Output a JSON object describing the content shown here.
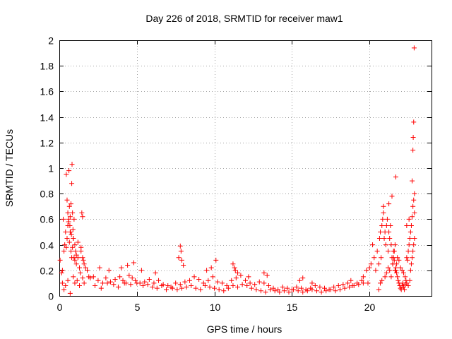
{
  "chart_data": {
    "type": "scatter",
    "title": "Day 226 of 2018, SRMTID for receiver maw1",
    "xlabel": "GPS time / hours",
    "ylabel": "SRMTID / TECUs",
    "xlim": [
      0,
      24
    ],
    "ylim": [
      0,
      2
    ],
    "xticks": [
      0,
      5,
      10,
      15,
      20
    ],
    "yticks": [
      0,
      0.2,
      0.4,
      0.6,
      0.8,
      1,
      1.2,
      1.4,
      1.6,
      1.8,
      2
    ],
    "ytick_labels": [
      "0",
      "0.2",
      "0.4",
      "0.6",
      "0.8",
      "1",
      "1.2",
      "1.4",
      "1.6",
      "1.8",
      "2"
    ],
    "grid": true,
    "marker": "+",
    "color": "#ff0000",
    "series": [
      {
        "name": "SRMTID",
        "x": [
          0.05,
          0.15,
          0.2,
          0.3,
          0.35,
          0.4,
          0.45,
          0.5,
          0.55,
          0.6,
          0.65,
          0.7,
          0.75,
          0.8,
          0.85,
          0.9,
          0.95,
          1.0,
          1.1,
          1.2,
          1.3,
          1.4,
          1.5,
          1.6,
          1.7,
          1.8,
          1.9,
          2.0,
          0.25,
          0.45,
          0.5,
          0.55,
          0.6,
          0.62,
          0.65,
          0.68,
          0.7,
          0.72,
          0.75,
          0.78,
          0.8,
          0.82,
          0.85,
          0.88,
          0.9,
          0.95,
          1.0,
          1.05,
          1.1,
          1.2,
          1.4,
          1.45,
          1.5,
          1.55,
          0.2,
          0.3,
          0.4,
          0.55,
          0.7,
          0.9,
          1.0,
          1.15,
          1.3,
          1.35,
          1.5,
          1.6,
          2.2,
          2.5,
          2.8,
          3.0,
          3.3,
          3.6,
          3.9,
          4.1,
          4.3,
          4.5,
          4.7,
          4.9,
          5.2,
          5.5,
          5.8,
          6.1,
          6.4,
          6.7,
          7.0,
          7.2,
          7.5,
          7.8,
          8.1,
          8.4,
          8.7,
          9.0,
          9.3,
          9.6,
          9.9,
          10.2,
          10.5,
          10.8,
          11.1,
          11.4,
          11.7,
          12.0,
          12.3,
          12.6,
          12.9,
          13.2,
          13.5,
          13.8,
          14.1,
          14.4,
          14.7,
          15.0,
          15.3,
          15.6,
          15.9,
          16.2,
          16.5,
          16.8,
          17.1,
          17.4,
          17.7,
          18.0,
          18.3,
          18.6,
          18.9,
          19.2,
          19.5,
          2.3,
          2.7,
          3.1,
          3.5,
          3.8,
          4.2,
          4.6,
          5.0,
          5.4,
          5.7,
          6.0,
          6.3,
          6.6,
          6.9,
          7.3,
          7.6,
          7.9,
          8.2,
          8.5,
          8.8,
          9.1,
          9.4,
          9.7,
          10.0,
          10.3,
          10.6,
          10.9,
          11.2,
          11.5,
          11.8,
          12.1,
          12.4,
          12.7,
          13.0,
          13.3,
          13.6,
          13.9,
          14.2,
          14.5,
          14.8,
          15.1,
          15.4,
          15.7,
          16.0,
          16.3,
          16.6,
          16.9,
          17.2,
          17.5,
          17.8,
          18.1,
          18.4,
          18.7,
          19.0,
          19.3,
          19.6,
          2.6,
          3.2,
          4.0,
          4.4,
          4.8,
          5.3,
          6.2,
          7.7,
          7.8,
          7.85,
          7.9,
          8.0,
          9.5,
          9.8,
          10.1,
          11.2,
          11.3,
          11.35,
          11.5,
          12.2,
          13.2,
          13.4,
          15.5,
          15.7,
          16.3,
          18.8,
          19.6,
          19.8,
          19.9,
          20.0,
          20.1,
          20.2,
          20.3,
          20.4,
          20.5,
          20.6,
          20.65,
          20.7,
          20.75,
          20.8,
          20.85,
          20.9,
          20.95,
          21.0,
          21.05,
          21.1,
          21.15,
          21.2,
          21.25,
          21.3,
          21.35,
          21.4,
          21.45,
          21.5,
          21.55,
          21.6,
          21.65,
          21.7,
          21.75,
          21.8,
          21.85,
          21.9,
          21.95,
          22.0,
          22.05,
          22.1,
          22.15,
          22.2,
          22.25,
          22.3,
          22.35,
          22.4,
          22.45,
          22.5,
          22.55,
          22.6,
          22.65,
          22.7,
          22.75,
          22.8,
          22.85,
          22.9,
          20.6,
          20.7,
          20.8,
          21.0,
          21.1,
          21.2,
          21.3,
          21.4,
          21.5,
          21.55,
          21.6,
          21.65,
          21.7,
          21.75,
          21.8,
          21.9,
          22.0,
          22.1,
          22.2,
          22.3,
          22.4,
          22.5,
          22.6,
          22.65,
          22.7,
          22.75,
          22.8,
          22.85,
          22.9,
          20.9,
          21.25,
          21.45,
          21.7,
          22.4,
          22.55,
          22.75,
          22.8,
          22.82,
          22.85,
          22.88,
          22.9
        ],
        "y": [
          0.28,
          0.18,
          0.2,
          0.35,
          0.4,
          0.5,
          0.38,
          0.45,
          0.55,
          0.6,
          0.42,
          0.5,
          0.35,
          0.3,
          0.38,
          0.45,
          0.3,
          0.28,
          0.25,
          0.3,
          0.22,
          0.35,
          0.3,
          0.25,
          0.22,
          0.2,
          0.15,
          0.14,
          0.6,
          0.95,
          0.75,
          0.65,
          0.58,
          0.98,
          0.7,
          0.55,
          0.62,
          0.5,
          0.72,
          0.48,
          0.88,
          1.03,
          0.65,
          0.52,
          0.45,
          0.6,
          0.4,
          0.35,
          0.32,
          0.42,
          0.38,
          0.65,
          0.62,
          0.28,
          0.1,
          0.05,
          0.08,
          0.12,
          0.02,
          0.15,
          0.1,
          0.12,
          0.08,
          0.18,
          0.14,
          0.1,
          0.15,
          0.12,
          0.1,
          0.14,
          0.11,
          0.13,
          0.15,
          0.12,
          0.1,
          0.16,
          0.14,
          0.12,
          0.1,
          0.11,
          0.13,
          0.1,
          0.12,
          0.09,
          0.08,
          0.07,
          0.1,
          0.09,
          0.11,
          0.12,
          0.15,
          0.13,
          0.1,
          0.12,
          0.15,
          0.11,
          0.1,
          0.08,
          0.12,
          0.14,
          0.16,
          0.12,
          0.1,
          0.09,
          0.11,
          0.1,
          0.08,
          0.06,
          0.05,
          0.07,
          0.06,
          0.05,
          0.07,
          0.06,
          0.05,
          0.06,
          0.08,
          0.07,
          0.06,
          0.05,
          0.07,
          0.08,
          0.09,
          0.1,
          0.08,
          0.1,
          0.12,
          0.08,
          0.06,
          0.1,
          0.09,
          0.07,
          0.1,
          0.09,
          0.1,
          0.08,
          0.09,
          0.07,
          0.06,
          0.08,
          0.05,
          0.06,
          0.05,
          0.06,
          0.07,
          0.08,
          0.06,
          0.05,
          0.08,
          0.07,
          0.06,
          0.05,
          0.04,
          0.06,
          0.08,
          0.07,
          0.09,
          0.08,
          0.06,
          0.05,
          0.04,
          0.03,
          0.05,
          0.04,
          0.03,
          0.04,
          0.03,
          0.05,
          0.04,
          0.03,
          0.04,
          0.05,
          0.04,
          0.03,
          0.04,
          0.05,
          0.04,
          0.05,
          0.06,
          0.07,
          0.08,
          0.09,
          0.1,
          0.22,
          0.2,
          0.22,
          0.24,
          0.26,
          0.2,
          0.18,
          0.3,
          0.39,
          0.35,
          0.28,
          0.24,
          0.2,
          0.22,
          0.28,
          0.25,
          0.22,
          0.2,
          0.18,
          0.15,
          0.18,
          0.16,
          0.12,
          0.14,
          0.1,
          0.12,
          0.15,
          0.2,
          0.1,
          0.22,
          0.25,
          0.4,
          0.3,
          0.2,
          0.35,
          0.25,
          0.45,
          0.5,
          0.3,
          0.55,
          0.6,
          0.7,
          0.45,
          0.5,
          0.4,
          0.55,
          0.6,
          0.35,
          0.5,
          0.45,
          0.55,
          0.4,
          0.3,
          0.25,
          0.35,
          0.28,
          0.2,
          0.22,
          0.18,
          0.15,
          0.12,
          0.1,
          0.08,
          0.06,
          0.05,
          0.08,
          0.1,
          0.07,
          0.05,
          0.09,
          0.12,
          0.3,
          0.28,
          0.35,
          0.4,
          0.45,
          0.5,
          0.55,
          0.62,
          0.7,
          0.75,
          0.8,
          0.05,
          0.1,
          0.12,
          0.15,
          0.18,
          0.22,
          0.2,
          0.15,
          0.25,
          0.3,
          0.35,
          0.4,
          0.2,
          0.25,
          0.3,
          0.28,
          0.22,
          0.2,
          0.18,
          0.15,
          0.1,
          0.08,
          0.12,
          0.2,
          0.25,
          0.3,
          0.35,
          0.4,
          0.45,
          0.65,
          0.72,
          0.78,
          0.93,
          0.55,
          0.6,
          0.9,
          1.14,
          1.24,
          1.36,
          1.94,
          0.65
        ]
      }
    ]
  }
}
